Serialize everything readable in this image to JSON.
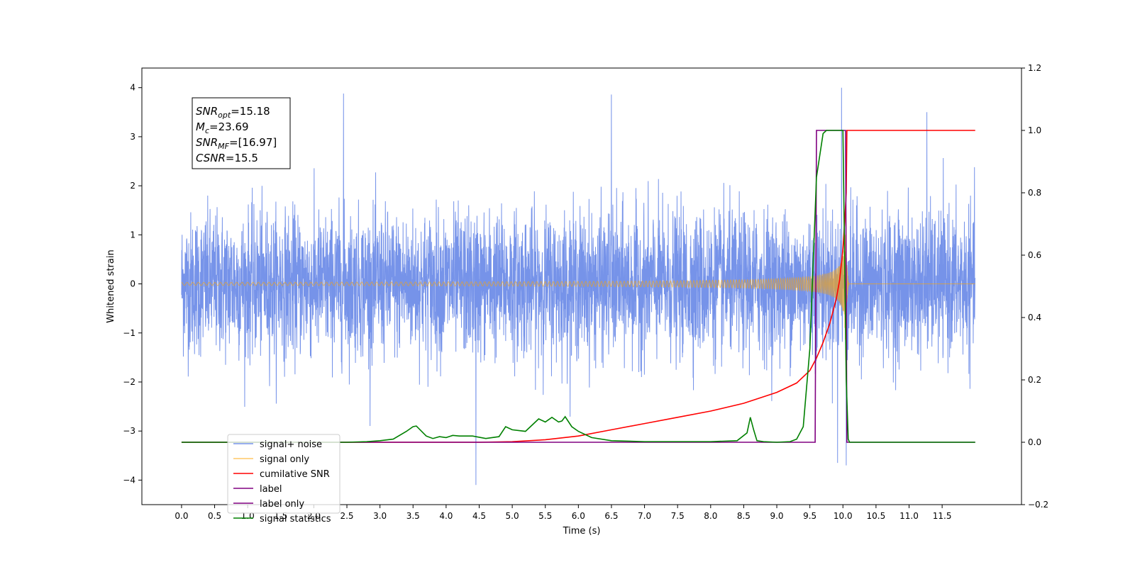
{
  "chart_data": {
    "type": "line",
    "xlabel": "Time (s)",
    "ylabel": "Whitened strain",
    "xlim": [
      -0.6,
      12.7
    ],
    "ylim": [
      -4.5,
      4.4
    ],
    "y2lim": [
      -0.2,
      1.2
    ],
    "grid": false,
    "legend_position": "lower-left",
    "x_ticks": [
      "0.0",
      "0.5",
      "1.0",
      "1.5",
      "2.0",
      "2.5",
      "3.0",
      "3.5",
      "4.0",
      "4.5",
      "5.0",
      "5.5",
      "6.0",
      "6.5",
      "7.0",
      "7.5",
      "8.0",
      "8.5",
      "9.0",
      "9.5",
      "10.0",
      "10.5",
      "11.0",
      "11.5"
    ],
    "y_ticks": [
      4,
      3,
      2,
      1,
      0,
      -1,
      -2,
      -3,
      -4
    ],
    "y2_ticks": [
      "1.2",
      "1.0",
      "0.8",
      "0.6",
      "0.4",
      "0.2",
      "0.0",
      "−0.2"
    ],
    "annotation": {
      "lines": [
        {
          "main": "SNR",
          "sub": "opt",
          "value": "=15.18"
        },
        {
          "main": "M",
          "sub": "c",
          "value": "=23.69"
        },
        {
          "main": "SNR",
          "sub": "MF",
          "value": "=[16.97]"
        },
        {
          "main": "CSNR",
          "sub": "",
          "value": "=15.5"
        }
      ]
    },
    "series": [
      {
        "name": "signal+ noise",
        "color": "#4169e1",
        "axis": "left",
        "kind": "noise",
        "x_range": [
          0.0,
          12.0
        ],
        "amplitude_typical": 1.5,
        "spikes": [
          [
            2.45,
            3.88
          ],
          [
            6.5,
            3.86
          ],
          [
            9.98,
            4.0
          ],
          [
            11.27,
            3.5
          ],
          [
            4.45,
            -4.1
          ],
          [
            10.05,
            -3.7
          ],
          [
            9.92,
            -3.65
          ]
        ]
      },
      {
        "name": "signal only",
        "color": "#ffa500",
        "axis": "left",
        "kind": "chirp",
        "t_merger": 10.05,
        "amp_peak": 1.6
      },
      {
        "name": "cumilative SNR",
        "color": "#ff0000",
        "axis": "right",
        "x": [
          0.0,
          4.5,
          5.0,
          5.5,
          6.0,
          6.5,
          7.0,
          7.5,
          8.0,
          8.5,
          9.0,
          9.3,
          9.5,
          9.6,
          9.7,
          9.8,
          9.9,
          9.95,
          10.0,
          10.03,
          10.05,
          10.06,
          12.0
        ],
        "y": [
          0.0,
          0.0,
          0.002,
          0.008,
          0.02,
          0.04,
          0.06,
          0.08,
          0.1,
          0.125,
          0.16,
          0.19,
          0.23,
          0.27,
          0.32,
          0.38,
          0.46,
          0.52,
          0.62,
          0.72,
          0.8,
          1.0,
          1.0
        ]
      },
      {
        "name": "label",
        "color": "#800080",
        "axis": "right",
        "x": [
          0.0,
          9.58,
          9.6,
          10.04,
          10.06,
          12.0
        ],
        "y": [
          0.0,
          0.0,
          1.0,
          1.0,
          0.0,
          0.0
        ]
      },
      {
        "name": "label only",
        "color": "#800080",
        "axis": "right",
        "x": [],
        "y": []
      },
      {
        "name": "signal statistics",
        "color": "#008000",
        "axis": "right",
        "x": [
          0.0,
          2.5,
          2.8,
          3.0,
          3.2,
          3.4,
          3.5,
          3.55,
          3.7,
          3.8,
          3.9,
          4.0,
          4.1,
          4.2,
          4.4,
          4.6,
          4.8,
          4.9,
          5.0,
          5.2,
          5.4,
          5.5,
          5.6,
          5.7,
          5.75,
          5.8,
          5.9,
          6.0,
          6.2,
          6.5,
          7.0,
          7.5,
          8.0,
          8.4,
          8.55,
          8.6,
          8.65,
          8.7,
          8.8,
          9.0,
          9.2,
          9.3,
          9.4,
          9.5,
          9.6,
          9.7,
          9.75,
          9.8,
          9.9,
          10.0,
          10.05,
          10.08,
          10.1,
          12.0
        ],
        "y": [
          0.0,
          0.0,
          0.002,
          0.005,
          0.01,
          0.035,
          0.05,
          0.052,
          0.02,
          0.012,
          0.018,
          0.015,
          0.022,
          0.02,
          0.02,
          0.012,
          0.018,
          0.05,
          0.04,
          0.035,
          0.075,
          0.065,
          0.08,
          0.065,
          0.068,
          0.082,
          0.05,
          0.035,
          0.015,
          0.005,
          0.002,
          0.002,
          0.002,
          0.005,
          0.03,
          0.08,
          0.04,
          0.005,
          0.002,
          0.0,
          0.002,
          0.01,
          0.05,
          0.3,
          0.85,
          0.99,
          1.0,
          1.0,
          1.0,
          1.0,
          0.2,
          0.01,
          0.0,
          0.0
        ]
      }
    ]
  }
}
